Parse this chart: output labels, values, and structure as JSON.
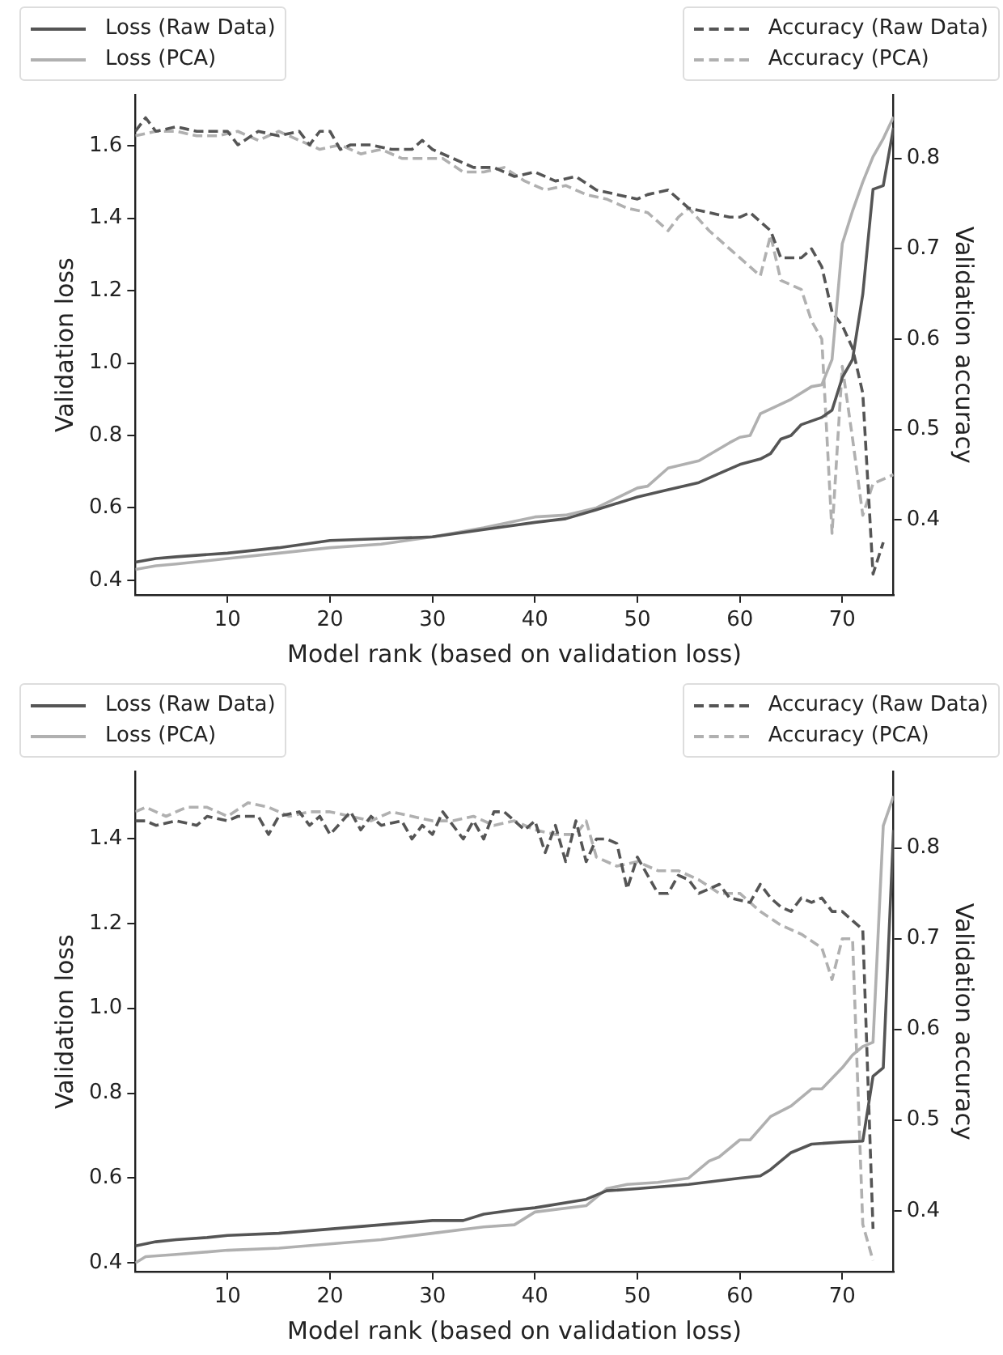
{
  "chart_data": [
    {
      "type": "line",
      "xlabel": "Model rank (based on validation loss)",
      "ylabel": "Validation loss",
      "y2label": "Validation accuracy",
      "xlim": [
        1,
        75
      ],
      "xticks": [
        10,
        20,
        30,
        40,
        50,
        60,
        70
      ],
      "ylim": [
        0.36,
        1.74
      ],
      "yticks": [
        0.4,
        0.6,
        0.8,
        {
          "value": 1.0,
          "label": "1.0"
        },
        1.2,
        1.4,
        1.6
      ],
      "y2lim": [
        0.317,
        0.87
      ],
      "y2ticks": [
        0.4,
        0.5,
        0.6,
        0.7,
        0.8
      ],
      "legend": "top",
      "grid": false,
      "marker": "none",
      "series": [
        {
          "name": "Loss (Raw Data)",
          "color": "#555555",
          "line_style": "solid",
          "x": [
            1,
            3,
            5,
            10,
            15,
            20,
            25,
            30,
            35,
            40,
            43,
            46,
            50,
            53,
            56,
            58,
            60,
            62,
            63,
            64,
            65,
            66,
            68,
            69,
            70,
            71,
            72,
            73,
            74,
            75
          ],
          "values": [
            0.45,
            0.46,
            0.465,
            0.475,
            0.49,
            0.51,
            0.515,
            0.52,
            0.54,
            0.56,
            0.57,
            0.595,
            0.63,
            0.65,
            0.67,
            0.695,
            0.72,
            0.735,
            0.75,
            0.79,
            0.8,
            0.83,
            0.85,
            0.87,
            0.96,
            1.01,
            1.19,
            1.48,
            1.49,
            1.65
          ]
        },
        {
          "name": "Loss (PCA)",
          "color": "#b0b0b0",
          "line_style": "solid",
          "x": [
            1,
            3,
            5,
            10,
            15,
            20,
            25,
            30,
            35,
            40,
            43,
            46,
            50,
            51,
            53,
            56,
            59,
            60,
            61,
            62,
            65,
            67,
            68,
            69,
            70,
            71,
            72,
            73,
            74,
            75
          ],
          "values": [
            0.43,
            0.44,
            0.445,
            0.46,
            0.475,
            0.49,
            0.5,
            0.52,
            0.545,
            0.575,
            0.58,
            0.6,
            0.655,
            0.66,
            0.71,
            0.73,
            0.78,
            0.795,
            0.8,
            0.86,
            0.9,
            0.935,
            0.94,
            1.01,
            1.33,
            1.42,
            1.5,
            1.57,
            1.62,
            1.68
          ]
        },
        {
          "name": "Accuracy (Raw Data)",
          "color": "#555555",
          "line_style": "dashed",
          "axis": "y2",
          "x": [
            1,
            2,
            3,
            5,
            7,
            9,
            10,
            11,
            13,
            15,
            17,
            18,
            19,
            20,
            21,
            22,
            24,
            26,
            28,
            29,
            30,
            32,
            34,
            36,
            38,
            40,
            42,
            44,
            46,
            48,
            50,
            51,
            53,
            55,
            57,
            59,
            60,
            61,
            63,
            64,
            66,
            67,
            68,
            69,
            70,
            71,
            72,
            73,
            74
          ],
          "values": [
            0.83,
            0.845,
            0.83,
            0.835,
            0.83,
            0.83,
            0.83,
            0.815,
            0.83,
            0.825,
            0.83,
            0.815,
            0.83,
            0.83,
            0.81,
            0.815,
            0.815,
            0.81,
            0.81,
            0.82,
            0.81,
            0.8,
            0.79,
            0.79,
            0.78,
            0.785,
            0.775,
            0.78,
            0.765,
            0.76,
            0.755,
            0.76,
            0.765,
            0.745,
            0.74,
            0.735,
            0.735,
            0.74,
            0.72,
            0.69,
            0.69,
            0.7,
            0.68,
            0.63,
            0.615,
            0.59,
            0.54,
            0.34,
            0.375
          ]
        },
        {
          "name": "Accuracy (PCA)",
          "color": "#b0b0b0",
          "line_style": "dashed",
          "axis": "y2",
          "x": [
            1,
            3,
            5,
            7,
            9,
            11,
            13,
            15,
            17,
            19,
            21,
            23,
            25,
            27,
            29,
            31,
            33,
            35,
            37,
            39,
            41,
            43,
            45,
            47,
            49,
            51,
            53,
            54,
            55,
            57,
            59,
            61,
            62,
            63,
            64,
            66,
            67,
            68,
            69,
            70,
            71,
            72,
            73,
            75
          ],
          "values": [
            0.825,
            0.83,
            0.83,
            0.825,
            0.825,
            0.83,
            0.82,
            0.83,
            0.82,
            0.81,
            0.815,
            0.805,
            0.81,
            0.8,
            0.8,
            0.8,
            0.785,
            0.785,
            0.79,
            0.775,
            0.765,
            0.77,
            0.76,
            0.755,
            0.745,
            0.74,
            0.72,
            0.735,
            0.745,
            0.72,
            0.7,
            0.68,
            0.67,
            0.715,
            0.665,
            0.655,
            0.62,
            0.6,
            0.385,
            0.57,
            0.49,
            0.405,
            0.44,
            0.45
          ]
        }
      ]
    },
    {
      "type": "line",
      "xlabel": "Model rank (based on validation loss)",
      "ylabel": "Validation loss",
      "y2label": "Validation accuracy",
      "xlim": [
        1,
        75
      ],
      "xticks": [
        10,
        20,
        30,
        40,
        50,
        60,
        70
      ],
      "ylim": [
        0.38,
        1.557
      ],
      "yticks": [
        0.4,
        0.6,
        0.8,
        {
          "value": 1.0,
          "label": "1.0"
        },
        1.2,
        1.4
      ],
      "y2lim": [
        0.333,
        0.884
      ],
      "y2ticks": [
        0.4,
        0.5,
        0.6,
        0.7,
        0.8
      ],
      "legend": "top",
      "grid": false,
      "marker": "none",
      "series": [
        {
          "name": "Loss (Raw Data)",
          "color": "#555555",
          "line_style": "solid",
          "x": [
            1,
            3,
            5,
            8,
            10,
            15,
            20,
            25,
            30,
            33,
            35,
            38,
            40,
            45,
            47,
            50,
            55,
            60,
            62,
            63,
            65,
            67,
            70,
            72,
            73,
            74,
            75
          ],
          "values": [
            0.44,
            0.45,
            0.455,
            0.46,
            0.465,
            0.47,
            0.48,
            0.49,
            0.5,
            0.5,
            0.515,
            0.525,
            0.53,
            0.55,
            0.57,
            0.575,
            0.585,
            0.6,
            0.605,
            0.62,
            0.66,
            0.68,
            0.685,
            0.687,
            0.84,
            0.86,
            1.42
          ]
        },
        {
          "name": "Loss (PCA)",
          "color": "#b0b0b0",
          "line_style": "solid",
          "x": [
            1,
            2,
            5,
            10,
            15,
            20,
            25,
            30,
            35,
            38,
            40,
            45,
            47,
            49,
            52,
            55,
            57,
            58,
            60,
            61,
            63,
            65,
            67,
            68,
            70,
            71,
            72,
            73,
            74,
            75
          ],
          "values": [
            0.4,
            0.415,
            0.42,
            0.43,
            0.435,
            0.445,
            0.455,
            0.47,
            0.485,
            0.49,
            0.52,
            0.535,
            0.575,
            0.585,
            0.59,
            0.6,
            0.64,
            0.65,
            0.69,
            0.69,
            0.745,
            0.77,
            0.81,
            0.81,
            0.86,
            0.89,
            0.91,
            0.92,
            1.43,
            1.5
          ]
        },
        {
          "name": "Accuracy (Raw Data)",
          "color": "#555555",
          "line_style": "dashed",
          "axis": "y2",
          "x": [
            1,
            2,
            3,
            5,
            7,
            8,
            10,
            11,
            13,
            14,
            15,
            17,
            18,
            19,
            20,
            22,
            23,
            24,
            25,
            27,
            28,
            29,
            30,
            31,
            33,
            34,
            35,
            36,
            37,
            39,
            40,
            41,
            42,
            43,
            44,
            45,
            46,
            47,
            48,
            49,
            50,
            51,
            52,
            53,
            54,
            55,
            56,
            58,
            59,
            61,
            62,
            63,
            64,
            65,
            66,
            67,
            68,
            69,
            70,
            71,
            72,
            73
          ],
          "values": [
            0.83,
            0.83,
            0.825,
            0.83,
            0.825,
            0.835,
            0.83,
            0.835,
            0.835,
            0.815,
            0.835,
            0.84,
            0.825,
            0.835,
            0.815,
            0.84,
            0.82,
            0.835,
            0.825,
            0.83,
            0.81,
            0.825,
            0.815,
            0.84,
            0.81,
            0.83,
            0.81,
            0.84,
            0.84,
            0.82,
            0.83,
            0.795,
            0.825,
            0.785,
            0.83,
            0.785,
            0.81,
            0.81,
            0.805,
            0.755,
            0.79,
            0.77,
            0.75,
            0.75,
            0.77,
            0.765,
            0.75,
            0.76,
            0.745,
            0.74,
            0.76,
            0.745,
            0.735,
            0.73,
            0.745,
            0.74,
            0.745,
            0.73,
            0.73,
            0.72,
            0.71,
            0.38
          ]
        },
        {
          "name": "Accuracy (PCA)",
          "color": "#b0b0b0",
          "line_style": "dashed",
          "axis": "y2",
          "x": [
            1,
            2,
            4,
            6,
            8,
            10,
            12,
            14,
            16,
            18,
            20,
            22,
            24,
            26,
            28,
            30,
            32,
            34,
            36,
            38,
            40,
            42,
            44,
            45,
            46,
            48,
            50,
            52,
            54,
            56,
            58,
            60,
            62,
            64,
            66,
            68,
            69,
            70,
            71,
            72,
            73
          ],
          "values": [
            0.84,
            0.845,
            0.835,
            0.845,
            0.845,
            0.835,
            0.85,
            0.845,
            0.835,
            0.84,
            0.84,
            0.835,
            0.83,
            0.84,
            0.835,
            0.83,
            0.83,
            0.835,
            0.825,
            0.83,
            0.82,
            0.815,
            0.815,
            0.83,
            0.79,
            0.78,
            0.785,
            0.775,
            0.775,
            0.765,
            0.75,
            0.75,
            0.73,
            0.715,
            0.705,
            0.69,
            0.655,
            0.7,
            0.7,
            0.385,
            0.345
          ]
        }
      ]
    }
  ]
}
